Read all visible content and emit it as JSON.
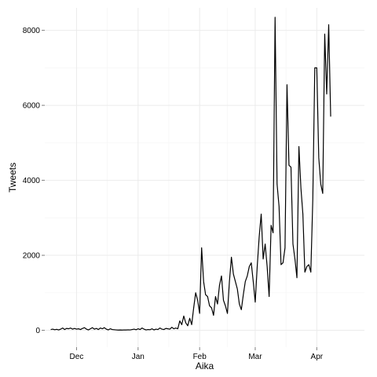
{
  "chart_data": {
    "type": "line",
    "title": "",
    "xlabel": "Aika",
    "ylabel": "Tweets",
    "x_range": [
      "2012-11-15",
      "2013-04-25"
    ],
    "ylim": [
      -450,
      8600
    ],
    "grid": true,
    "x_ticks": [
      {
        "date": "2012-12-01",
        "label": "Dec"
      },
      {
        "date": "2013-01-01",
        "label": "Jan"
      },
      {
        "date": "2013-02-01",
        "label": "Feb"
      },
      {
        "date": "2013-03-01",
        "label": "Mar"
      },
      {
        "date": "2013-04-01",
        "label": "Apr"
      }
    ],
    "y_ticks": [
      {
        "value": 0,
        "label": "0"
      },
      {
        "value": 2000,
        "label": "2000"
      },
      {
        "value": 4000,
        "label": "4000"
      },
      {
        "value": 6000,
        "label": "6000"
      },
      {
        "value": 8000,
        "label": "8000"
      }
    ],
    "series": [
      {
        "color": "#000000",
        "points": [
          [
            "2012-11-18",
            20
          ],
          [
            "2012-11-19",
            30
          ],
          [
            "2012-11-20",
            15
          ],
          [
            "2012-11-21",
            25
          ],
          [
            "2012-11-22",
            10
          ],
          [
            "2012-11-23",
            30
          ],
          [
            "2012-11-24",
            60
          ],
          [
            "2012-11-25",
            20
          ],
          [
            "2012-11-26",
            50
          ],
          [
            "2012-11-27",
            40
          ],
          [
            "2012-11-28",
            60
          ],
          [
            "2012-11-29",
            30
          ],
          [
            "2012-11-30",
            50
          ],
          [
            "2012-12-01",
            30
          ],
          [
            "2012-12-02",
            40
          ],
          [
            "2012-12-03",
            20
          ],
          [
            "2012-12-04",
            50
          ],
          [
            "2012-12-05",
            70
          ],
          [
            "2012-12-06",
            30
          ],
          [
            "2012-12-07",
            10
          ],
          [
            "2012-12-08",
            40
          ],
          [
            "2012-12-09",
            70
          ],
          [
            "2012-12-10",
            30
          ],
          [
            "2012-12-11",
            50
          ],
          [
            "2012-12-12",
            20
          ],
          [
            "2012-12-13",
            60
          ],
          [
            "2012-12-14",
            40
          ],
          [
            "2012-12-15",
            70
          ],
          [
            "2012-12-16",
            30
          ],
          [
            "2012-12-17",
            10
          ],
          [
            "2012-12-18",
            40
          ],
          [
            "2012-12-19",
            20
          ],
          [
            "2012-12-20",
            15
          ],
          [
            "2012-12-21",
            10
          ],
          [
            "2012-12-22",
            5
          ],
          [
            "2012-12-23",
            8
          ],
          [
            "2012-12-24",
            5
          ],
          [
            "2012-12-25",
            10
          ],
          [
            "2012-12-26",
            8
          ],
          [
            "2012-12-27",
            12
          ],
          [
            "2012-12-28",
            10
          ],
          [
            "2012-12-29",
            20
          ],
          [
            "2012-12-30",
            30
          ],
          [
            "2012-12-31",
            15
          ],
          [
            "2013-01-01",
            40
          ],
          [
            "2013-01-02",
            20
          ],
          [
            "2013-01-03",
            60
          ],
          [
            "2013-01-04",
            30
          ],
          [
            "2013-01-05",
            10
          ],
          [
            "2013-01-06",
            20
          ],
          [
            "2013-01-07",
            15
          ],
          [
            "2013-01-08",
            40
          ],
          [
            "2013-01-09",
            10
          ],
          [
            "2013-01-10",
            30
          ],
          [
            "2013-01-11",
            20
          ],
          [
            "2013-01-12",
            60
          ],
          [
            "2013-01-13",
            30
          ],
          [
            "2013-01-14",
            20
          ],
          [
            "2013-01-15",
            50
          ],
          [
            "2013-01-16",
            40
          ],
          [
            "2013-01-17",
            30
          ],
          [
            "2013-01-18",
            80
          ],
          [
            "2013-01-19",
            40
          ],
          [
            "2013-01-20",
            60
          ],
          [
            "2013-01-21",
            40
          ],
          [
            "2013-01-22",
            250
          ],
          [
            "2013-01-23",
            150
          ],
          [
            "2013-01-24",
            380
          ],
          [
            "2013-01-25",
            200
          ],
          [
            "2013-01-26",
            120
          ],
          [
            "2013-01-27",
            320
          ],
          [
            "2013-01-28",
            150
          ],
          [
            "2013-01-29",
            600
          ],
          [
            "2013-01-30",
            1000
          ],
          [
            "2013-01-31",
            800
          ],
          [
            "2013-02-01",
            450
          ],
          [
            "2013-02-02",
            2200
          ],
          [
            "2013-02-03",
            1300
          ],
          [
            "2013-02-04",
            950
          ],
          [
            "2013-02-05",
            900
          ],
          [
            "2013-02-06",
            650
          ],
          [
            "2013-02-07",
            600
          ],
          [
            "2013-02-08",
            400
          ],
          [
            "2013-02-09",
            900
          ],
          [
            "2013-02-10",
            700
          ],
          [
            "2013-02-11",
            1200
          ],
          [
            "2013-02-12",
            1450
          ],
          [
            "2013-02-13",
            800
          ],
          [
            "2013-02-14",
            650
          ],
          [
            "2013-02-15",
            450
          ],
          [
            "2013-02-16",
            1300
          ],
          [
            "2013-02-17",
            1950
          ],
          [
            "2013-02-18",
            1500
          ],
          [
            "2013-02-19",
            1300
          ],
          [
            "2013-02-20",
            1100
          ],
          [
            "2013-02-21",
            700
          ],
          [
            "2013-02-22",
            550
          ],
          [
            "2013-02-23",
            950
          ],
          [
            "2013-02-24",
            1300
          ],
          [
            "2013-02-25",
            1450
          ],
          [
            "2013-02-26",
            1700
          ],
          [
            "2013-02-27",
            1800
          ],
          [
            "2013-02-28",
            1300
          ],
          [
            "2013-03-01",
            750
          ],
          [
            "2013-03-02",
            1700
          ],
          [
            "2013-03-03",
            2500
          ],
          [
            "2013-03-04",
            3100
          ],
          [
            "2013-03-05",
            1900
          ],
          [
            "2013-03-06",
            2300
          ],
          [
            "2013-03-07",
            1700
          ],
          [
            "2013-03-08",
            900
          ],
          [
            "2013-03-09",
            2800
          ],
          [
            "2013-03-10",
            2600
          ],
          [
            "2013-03-11",
            8350
          ],
          [
            "2013-03-12",
            3900
          ],
          [
            "2013-03-13",
            3300
          ],
          [
            "2013-03-14",
            1750
          ],
          [
            "2013-03-15",
            1800
          ],
          [
            "2013-03-16",
            2200
          ],
          [
            "2013-03-17",
            6550
          ],
          [
            "2013-03-18",
            4400
          ],
          [
            "2013-03-19",
            4350
          ],
          [
            "2013-03-20",
            2300
          ],
          [
            "2013-03-21",
            1900
          ],
          [
            "2013-03-22",
            1400
          ],
          [
            "2013-03-23",
            4900
          ],
          [
            "2013-03-24",
            3800
          ],
          [
            "2013-03-25",
            3100
          ],
          [
            "2013-03-26",
            1550
          ],
          [
            "2013-03-27",
            1700
          ],
          [
            "2013-03-28",
            1750
          ],
          [
            "2013-03-29",
            1550
          ],
          [
            "2013-03-30",
            3500
          ],
          [
            "2013-03-31",
            7000
          ],
          [
            "2013-04-01",
            7000
          ],
          [
            "2013-04-02",
            4600
          ],
          [
            "2013-04-03",
            3900
          ],
          [
            "2013-04-04",
            3650
          ],
          [
            "2013-04-05",
            7900
          ],
          [
            "2013-04-06",
            6300
          ],
          [
            "2013-04-07",
            8150
          ],
          [
            "2013-04-08",
            5700
          ]
        ]
      }
    ]
  }
}
